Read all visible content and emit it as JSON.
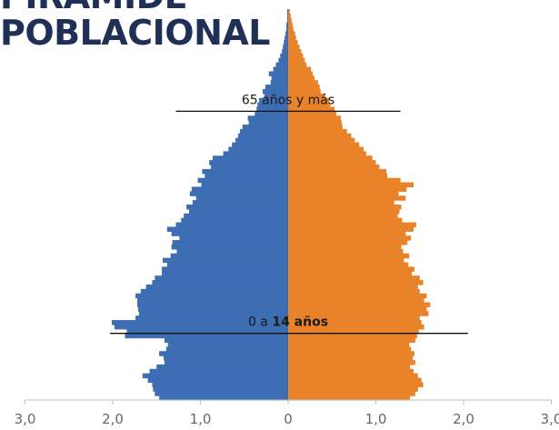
{
  "title_lines": [
    "PIRAMIDE",
    "POBLACIONAL"
  ],
  "chart_data": {
    "type": "bar",
    "orientation": "horizontal",
    "layout": "population-pyramid",
    "title": "PIRAMIDE POBLACIONAL",
    "xlim": [
      -3.0,
      3.0
    ],
    "x_ticks": [
      -3.0,
      -2.0,
      -1.0,
      0,
      1.0,
      2.0,
      3.0
    ],
    "x_tick_labels": [
      "3,0",
      "2,0",
      "1,0",
      "0",
      "1,0",
      "2,0",
      "3,0"
    ],
    "grid": false,
    "legend": "none",
    "categories_note": "single-year age groups, youngest at bottom",
    "series": [
      {
        "color": "#3d6db3",
        "side": "left",
        "values": [
          1.47,
          1.52,
          1.54,
          1.55,
          1.6,
          1.66,
          1.58,
          1.5,
          1.41,
          1.42,
          1.47,
          1.39,
          1.37,
          1.41,
          1.86,
          1.84,
          1.98,
          2.01,
          1.74,
          1.7,
          1.71,
          1.72,
          1.72,
          1.74,
          1.68,
          1.62,
          1.55,
          1.52,
          1.44,
          1.44,
          1.38,
          1.43,
          1.34,
          1.27,
          1.33,
          1.32,
          1.24,
          1.33,
          1.38,
          1.28,
          1.22,
          1.19,
          1.13,
          1.16,
          1.09,
          1.05,
          1.12,
          1.1,
          0.99,
          1.03,
          0.95,
          0.98,
          0.88,
          0.9,
          0.86,
          0.74,
          0.68,
          0.64,
          0.6,
          0.57,
          0.55,
          0.52,
          0.45,
          0.46,
          0.38,
          0.36,
          0.35,
          0.33,
          0.27,
          0.29,
          0.26,
          0.2,
          0.19,
          0.22,
          0.17,
          0.14,
          0.11,
          0.09,
          0.07,
          0.06,
          0.05,
          0.04,
          0.03,
          0.02,
          0.02,
          0.01,
          0.01,
          0.01
        ]
      },
      {
        "color": "#e8832a",
        "side": "right",
        "values": [
          1.39,
          1.45,
          1.48,
          1.54,
          1.52,
          1.48,
          1.43,
          1.39,
          1.45,
          1.42,
          1.44,
          1.4,
          1.38,
          1.45,
          1.47,
          1.49,
          1.55,
          1.52,
          1.5,
          1.6,
          1.58,
          1.62,
          1.55,
          1.58,
          1.5,
          1.48,
          1.54,
          1.5,
          1.41,
          1.44,
          1.37,
          1.32,
          1.38,
          1.31,
          1.29,
          1.36,
          1.4,
          1.34,
          1.43,
          1.46,
          1.3,
          1.25,
          1.27,
          1.29,
          1.21,
          1.34,
          1.26,
          1.35,
          1.43,
          1.28,
          1.13,
          1.12,
          1.04,
          1.0,
          0.96,
          0.89,
          0.86,
          0.81,
          0.76,
          0.72,
          0.67,
          0.62,
          0.61,
          0.6,
          0.55,
          0.53,
          0.48,
          0.47,
          0.42,
          0.37,
          0.36,
          0.34,
          0.3,
          0.28,
          0.26,
          0.21,
          0.19,
          0.17,
          0.15,
          0.13,
          0.11,
          0.09,
          0.08,
          0.06,
          0.05,
          0.04,
          0.03,
          0.02
        ]
      }
    ],
    "annotations": [
      {
        "text": "65 años y más",
        "bold": "",
        "age_index": 64,
        "x_from": -1.28,
        "x_to": 1.28
      },
      {
        "text": "0 a ",
        "bold": "14 años",
        "age_index": 14,
        "x_from": -2.03,
        "x_to": 2.05
      }
    ]
  }
}
